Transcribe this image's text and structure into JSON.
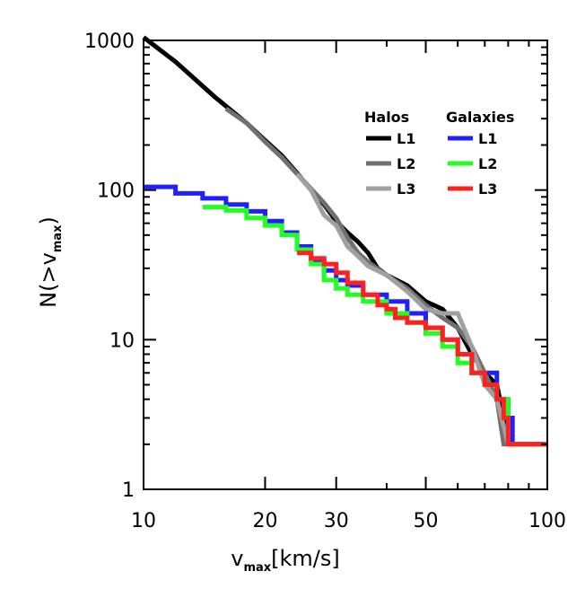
{
  "chart_data": {
    "type": "line",
    "title": "",
    "xlabel": {
      "main": "v",
      "sub": "max",
      "rest": "[km/s]"
    },
    "ylabel": {
      "prefix": "N(>v",
      "sub": "max",
      "suffix": ")"
    },
    "xscale": "log",
    "yscale": "log",
    "xlim": [
      10,
      100
    ],
    "ylim": [
      1,
      1000
    ],
    "xticks": [
      10,
      20,
      30,
      50,
      100
    ],
    "xtick_labels": [
      "10",
      "20",
      "30",
      "50",
      "100"
    ],
    "yticks": [
      1,
      10,
      100,
      1000
    ],
    "ytick_labels": [
      "1",
      "10",
      "100",
      "1000"
    ],
    "legend": {
      "placement": "top-right",
      "groups": [
        {
          "heading": "Halos",
          "entries": [
            "L1",
            "L2",
            "L3"
          ]
        },
        {
          "heading": "Galaxies",
          "entries": [
            "L1",
            "L2",
            "L3"
          ]
        }
      ]
    },
    "series": [
      {
        "name": "Halos L1",
        "group": "Halos",
        "color": "#000000",
        "step": false,
        "points": [
          [
            10,
            1050
          ],
          [
            12,
            720
          ],
          [
            15,
            420
          ],
          [
            18,
            280
          ],
          [
            20,
            215
          ],
          [
            22,
            170
          ],
          [
            24,
            130
          ],
          [
            26,
            100
          ],
          [
            28,
            80
          ],
          [
            30,
            62
          ],
          [
            32,
            52
          ],
          [
            34,
            45
          ],
          [
            36,
            38
          ],
          [
            38,
            30
          ],
          [
            40,
            27
          ],
          [
            45,
            23
          ],
          [
            50,
            18
          ],
          [
            55,
            16
          ],
          [
            60,
            12
          ],
          [
            65,
            8
          ],
          [
            70,
            6
          ],
          [
            75,
            5
          ],
          [
            78,
            3
          ],
          [
            80,
            2
          ],
          [
            100,
            2
          ]
        ]
      },
      {
        "name": "Halos L2",
        "group": "Halos",
        "color": "#707070",
        "step": false,
        "points": [
          [
            16,
            350
          ],
          [
            18,
            280
          ],
          [
            20,
            210
          ],
          [
            22,
            165
          ],
          [
            24,
            128
          ],
          [
            26,
            102
          ],
          [
            28,
            82
          ],
          [
            30,
            65
          ],
          [
            32,
            48
          ],
          [
            34,
            38
          ],
          [
            36,
            33
          ],
          [
            40,
            27
          ],
          [
            45,
            22
          ],
          [
            50,
            17
          ],
          [
            55,
            14
          ],
          [
            60,
            12
          ],
          [
            65,
            9
          ],
          [
            70,
            6
          ],
          [
            75,
            4
          ],
          [
            78,
            2
          ],
          [
            100,
            2
          ]
        ]
      },
      {
        "name": "Halos L3",
        "group": "Halos",
        "color": "#a0a0a0",
        "step": false,
        "points": [
          [
            24,
            128
          ],
          [
            26,
            100
          ],
          [
            28,
            68
          ],
          [
            30,
            58
          ],
          [
            32,
            42
          ],
          [
            34,
            36
          ],
          [
            36,
            31
          ],
          [
            40,
            27
          ],
          [
            45,
            21
          ],
          [
            50,
            16
          ],
          [
            55,
            15
          ],
          [
            60,
            15
          ],
          [
            65,
            9
          ],
          [
            70,
            5
          ],
          [
            75,
            4
          ],
          [
            80,
            2
          ],
          [
            100,
            2
          ]
        ]
      },
      {
        "name": "Galaxies L1",
        "group": "Galaxies",
        "color": "#2020ff",
        "step": true,
        "points": [
          [
            10,
            105
          ],
          [
            12,
            95
          ],
          [
            14,
            88
          ],
          [
            16,
            80
          ],
          [
            18,
            72
          ],
          [
            20,
            62
          ],
          [
            22,
            52
          ],
          [
            24,
            42
          ],
          [
            26,
            34
          ],
          [
            28,
            29
          ],
          [
            30,
            25
          ],
          [
            32,
            23
          ],
          [
            35,
            20
          ],
          [
            40,
            18
          ],
          [
            45,
            15
          ],
          [
            50,
            12
          ],
          [
            55,
            10
          ],
          [
            60,
            8
          ],
          [
            65,
            6
          ],
          [
            70,
            6
          ],
          [
            75,
            4
          ],
          [
            80,
            3
          ],
          [
            82,
            2
          ],
          [
            100,
            2
          ]
        ]
      },
      {
        "name": "Galaxies L2",
        "group": "Galaxies",
        "color": "#20ff20",
        "step": true,
        "points": [
          [
            14,
            77
          ],
          [
            16,
            73
          ],
          [
            18,
            65
          ],
          [
            20,
            58
          ],
          [
            22,
            50
          ],
          [
            24,
            40
          ],
          [
            26,
            32
          ],
          [
            28,
            25
          ],
          [
            30,
            22
          ],
          [
            32,
            20
          ],
          [
            35,
            18
          ],
          [
            40,
            15
          ],
          [
            45,
            13
          ],
          [
            50,
            11
          ],
          [
            55,
            9
          ],
          [
            60,
            7
          ],
          [
            65,
            6
          ],
          [
            70,
            5
          ],
          [
            75,
            4
          ],
          [
            80,
            2
          ],
          [
            100,
            2
          ]
        ]
      },
      {
        "name": "Galaxies L3",
        "group": "Galaxies",
        "color": "#ff2020",
        "step": true,
        "points": [
          [
            24,
            38
          ],
          [
            26,
            35
          ],
          [
            28,
            32
          ],
          [
            30,
            28
          ],
          [
            32,
            24
          ],
          [
            35,
            20
          ],
          [
            38,
            17
          ],
          [
            40,
            16
          ],
          [
            42,
            14
          ],
          [
            45,
            13
          ],
          [
            50,
            12
          ],
          [
            55,
            10
          ],
          [
            60,
            8
          ],
          [
            65,
            6
          ],
          [
            70,
            5
          ],
          [
            75,
            4
          ],
          [
            78,
            3
          ],
          [
            80,
            2
          ],
          [
            100,
            2
          ]
        ]
      }
    ]
  }
}
